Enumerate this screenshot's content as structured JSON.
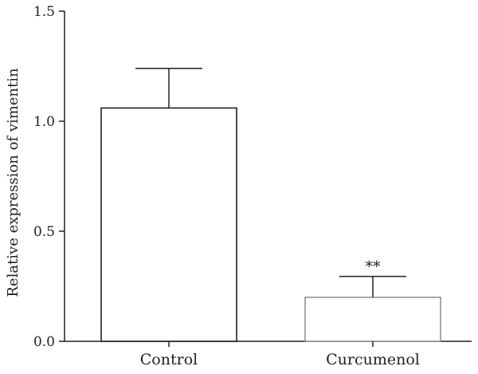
{
  "chart_data": {
    "type": "bar",
    "title": "",
    "xlabel": "",
    "ylabel": "Relative expression of vimentin",
    "ylim": [
      0,
      1.5
    ],
    "yticks": [
      "0.0",
      "0.5",
      "1.0",
      "1.5"
    ],
    "grid": false,
    "categories": [
      "Control",
      "Curcumenol"
    ],
    "values": [
      1.06,
      0.2
    ],
    "errors": [
      0.18,
      0.095
    ],
    "annotations": [
      "",
      "**"
    ],
    "colors": {
      "control_edge": "#111111",
      "curcumenol_edge": "#8c8c8c",
      "axis": "#222222"
    }
  }
}
